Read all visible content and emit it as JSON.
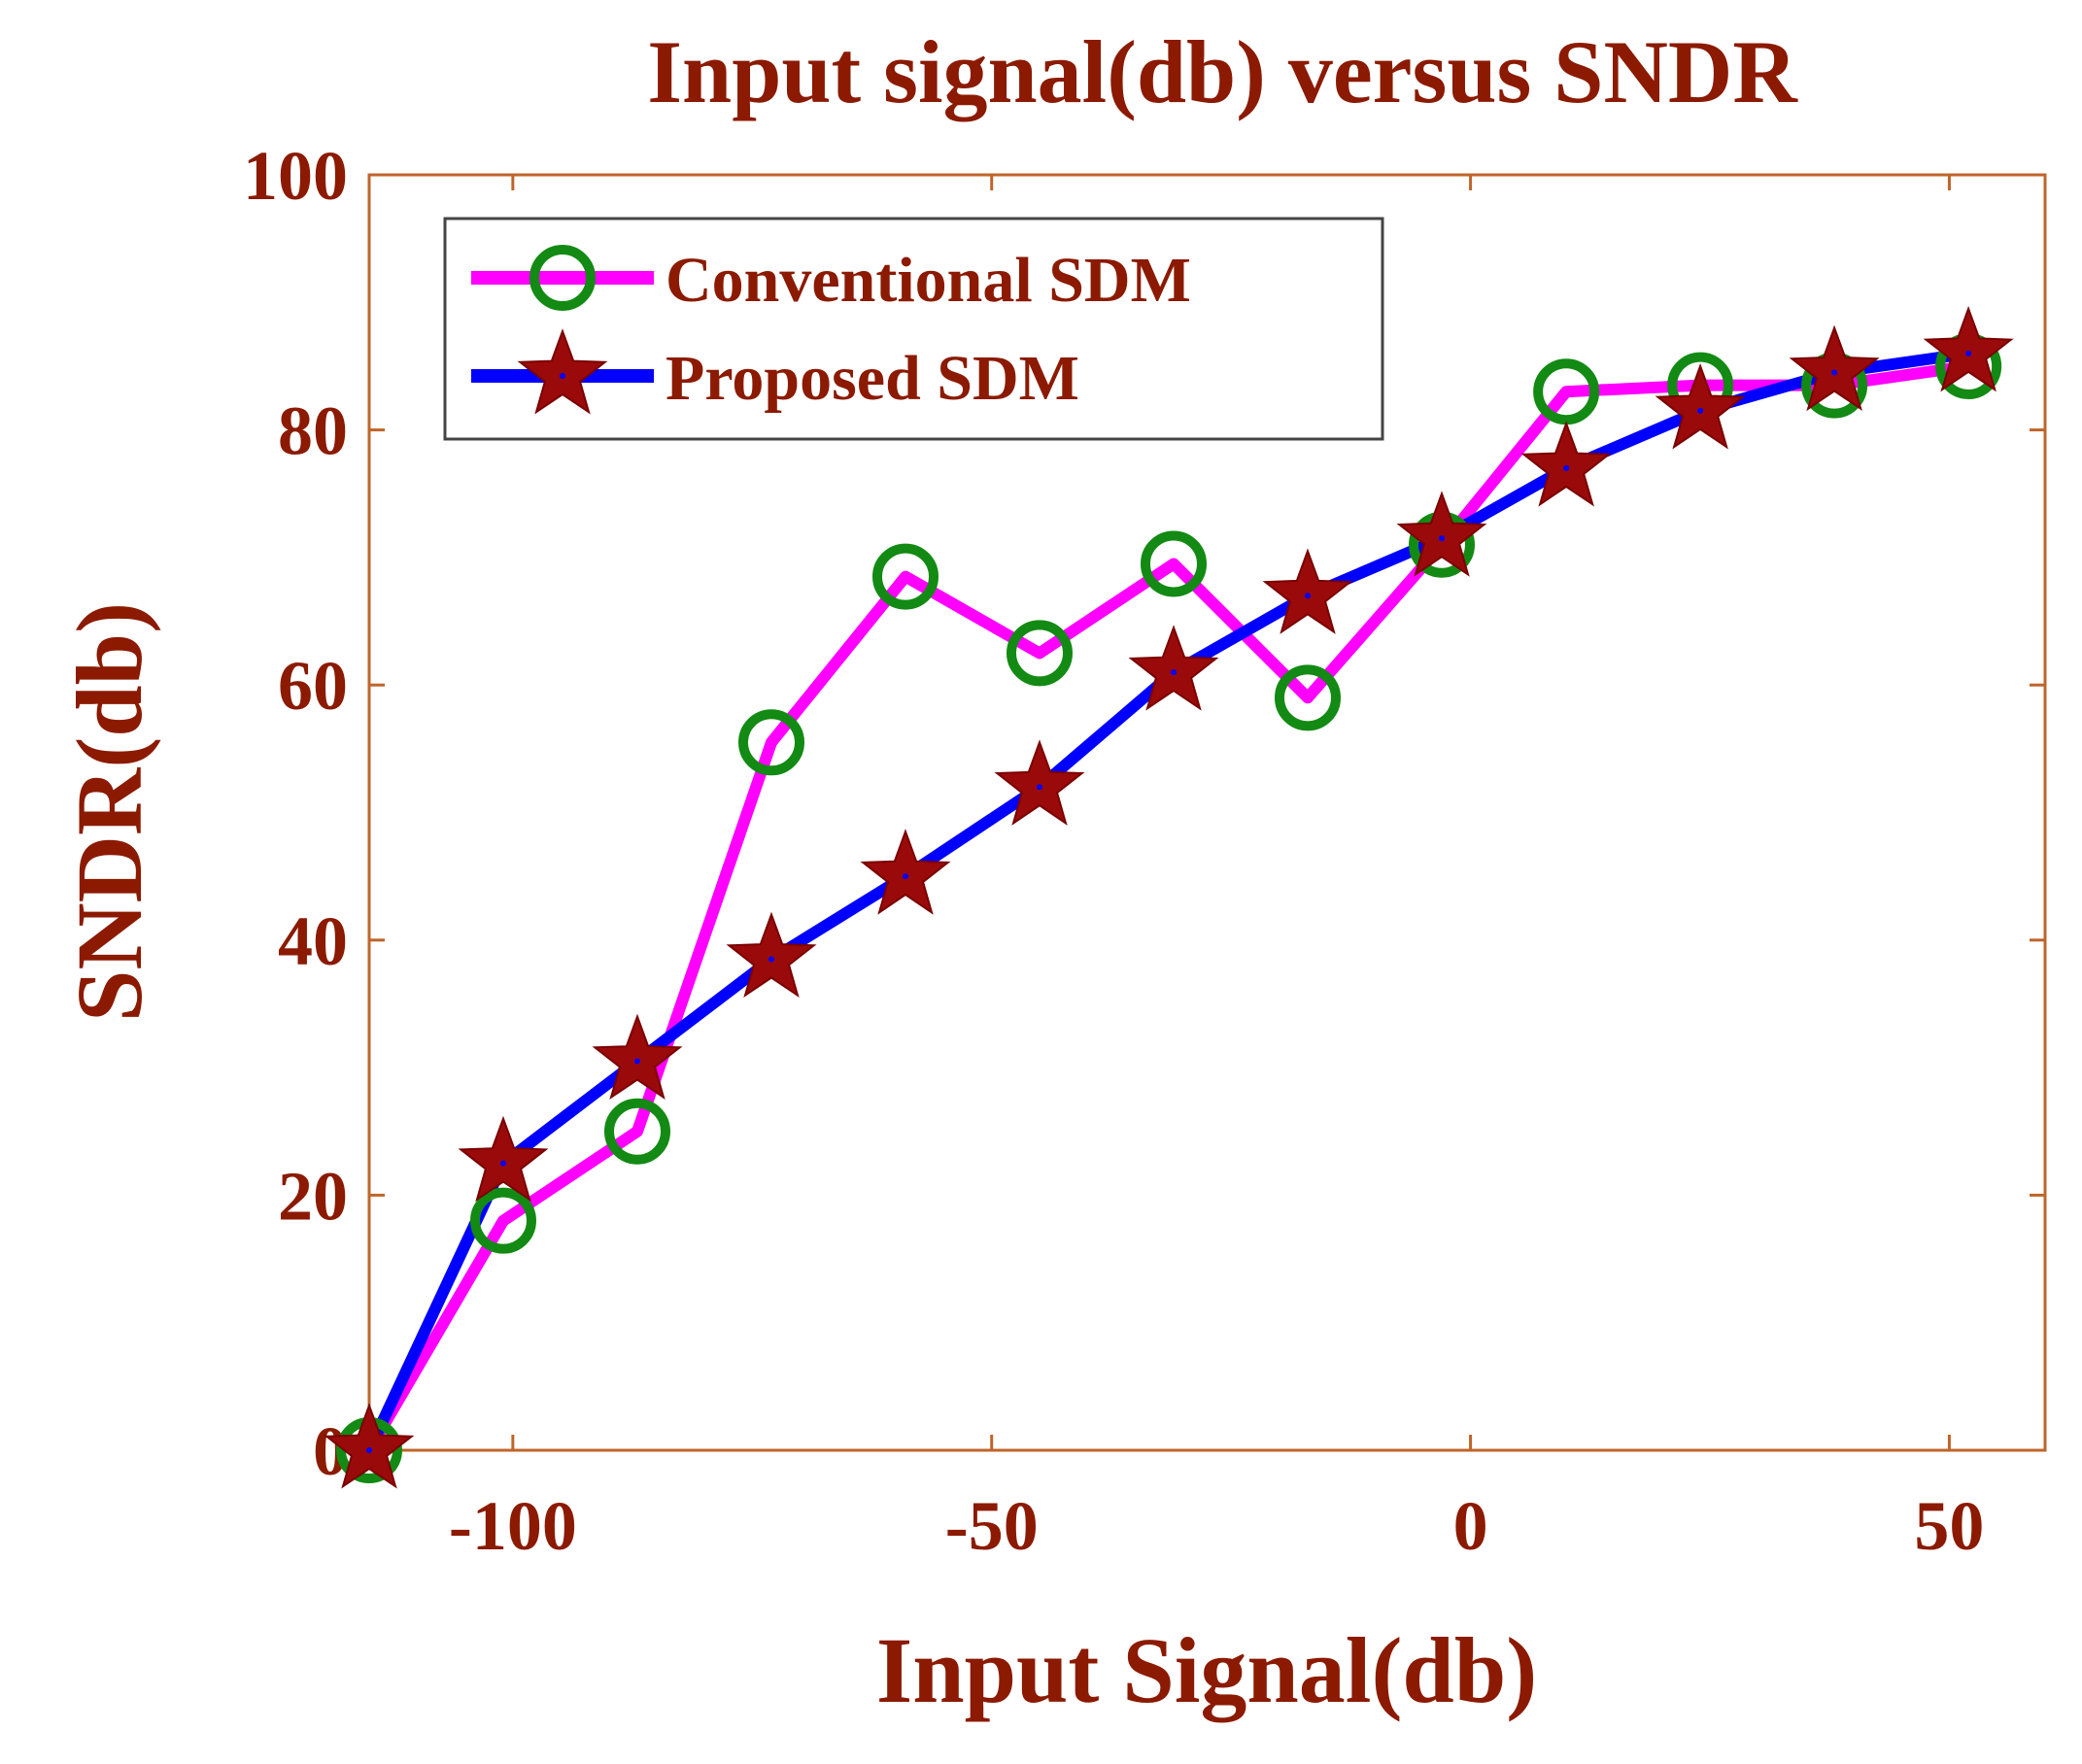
{
  "chart_data": {
    "type": "line",
    "title": "Input signal(db) versus SNDR",
    "xlabel": "Input Signal(db)",
    "ylabel": "SNDR(db)",
    "xlim": [
      -115,
      60
    ],
    "ylim": [
      0,
      100
    ],
    "xticks": [
      -100,
      -50,
      0,
      50
    ],
    "yticks": [
      0,
      20,
      40,
      60,
      80,
      100
    ],
    "x": [
      -115,
      -101,
      -87,
      -73,
      -59,
      -45,
      -31,
      -17,
      -3,
      10,
      24,
      38,
      52
    ],
    "series": [
      {
        "name": "Conventional SDM",
        "line_color": "#ff00ff",
        "marker": "circle",
        "marker_color": "#138a13",
        "values": [
          0,
          18,
          25,
          55.5,
          68.5,
          62.5,
          69.5,
          59,
          71,
          83,
          83.5,
          83.5,
          85
        ]
      },
      {
        "name": "Proposed SDM",
        "line_color": "#0000ff",
        "marker": "star",
        "marker_color": "#9b0a0a",
        "values": [
          0,
          22.5,
          30.5,
          38.5,
          45,
          52,
          61,
          67,
          71.5,
          77,
          81.5,
          84.5,
          86
        ]
      }
    ],
    "legend_position": "top-left",
    "grid": false
  },
  "colors": {
    "text": "#8b1a00",
    "axes": "#c0642a"
  }
}
